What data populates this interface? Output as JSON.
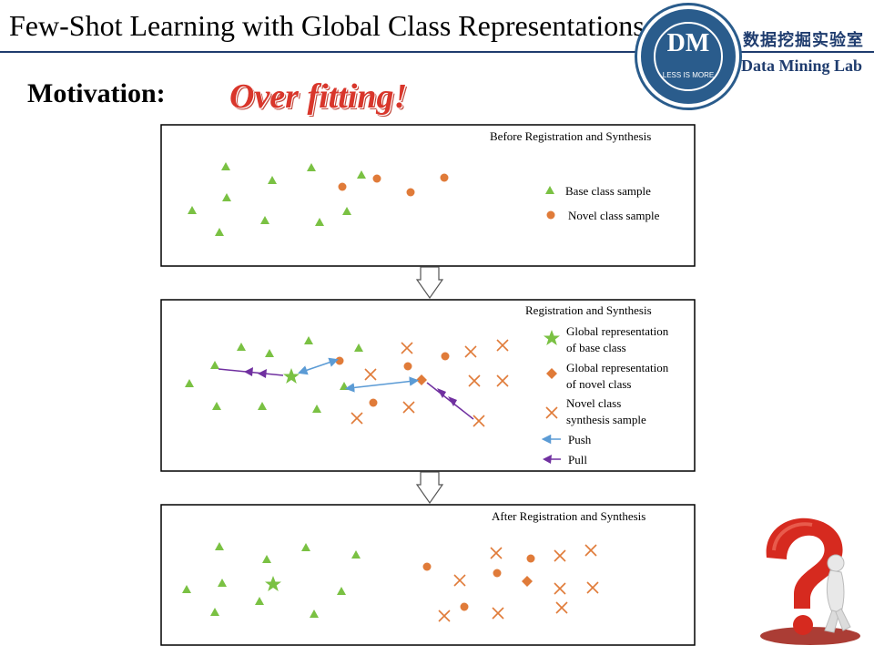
{
  "slide": {
    "title": "Few-Shot Learning with Global Class Representations",
    "logo_text": "DM",
    "logo_tagline": "LESS IS MORE",
    "lab_name_cn": "数据挖掘实验室",
    "lab_name_en": "Data Mining Lab",
    "motivation_label": "Motivation:",
    "highlight": "Over fitting!"
  },
  "panels": [
    {
      "title": "Before Registration and Synthesis",
      "legend": [
        "Base class sample",
        "Novel class sample"
      ]
    },
    {
      "title": "Registration and Synthesis",
      "legend": [
        [
          "Global representation",
          "of base class"
        ],
        [
          "Global representation",
          "of novel class"
        ],
        [
          "Novel class",
          "synthesis sample"
        ],
        [
          "Push"
        ],
        [
          "Pull"
        ]
      ]
    },
    {
      "title": "After Registration and Synthesis",
      "legend": []
    }
  ],
  "colors": {
    "base": "#7ac143",
    "novel": "#e07b39",
    "push": "#5b9bd5",
    "pull": "#7030a0",
    "title_blue": "#1f3c6e",
    "highlight_red": "#d9362b"
  },
  "icons": [
    "down-arrow-icon",
    "question-mark-figure-icon"
  ]
}
